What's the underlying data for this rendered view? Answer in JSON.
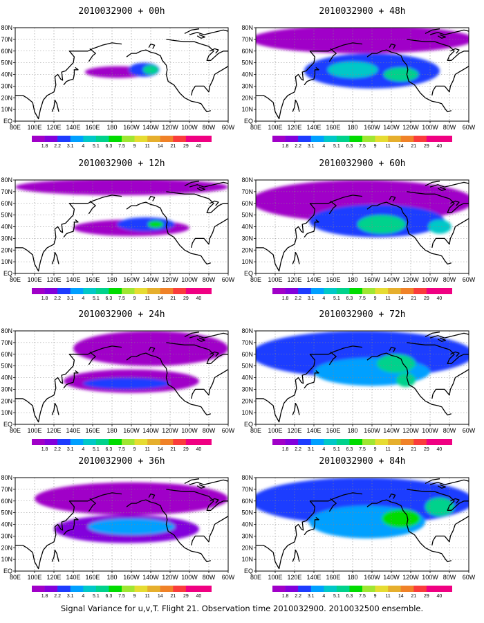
{
  "caption": "Signal Variance for u,v,T. Flight 21. Observation time 2010032900. 2010032500 ensemble.",
  "chart_data": {
    "type": "heatmap",
    "x_ticks": [
      "80E",
      "100E",
      "120E",
      "140E",
      "160E",
      "180",
      "160W",
      "140W",
      "120W",
      "100W",
      "80W",
      "60W"
    ],
    "y_ticks": [
      "EQ",
      "10N",
      "20N",
      "30N",
      "40N",
      "50N",
      "60N",
      "70N",
      "80N"
    ],
    "lon_range": [
      80,
      300
    ],
    "lat_range": [
      0,
      80
    ],
    "grid": true,
    "colorbar": {
      "levels": [
        "1.8",
        "2.2",
        "3.1",
        "4",
        "5.1",
        "6.3",
        "7.5",
        "9",
        "11",
        "14",
        "21",
        "29",
        "40"
      ],
      "colors": [
        "#a000c8",
        "#8200dc",
        "#1e3cff",
        "#00a0ff",
        "#00c8c8",
        "#00d28c",
        "#00dc00",
        "#a0e632",
        "#e6dc32",
        "#e6af2d",
        "#f08228",
        "#fa3c3c",
        "#f00082"
      ]
    },
    "panels": [
      {
        "title": "2010032900 + 00h",
        "blobs": [
          {
            "lon": 186,
            "lat": 42,
            "rx": 34,
            "ry": 5,
            "level": 0
          },
          {
            "lon": 213,
            "lat": 44,
            "rx": 16,
            "ry": 6,
            "level": 2
          },
          {
            "lon": 220,
            "lat": 44,
            "rx": 8,
            "ry": 4,
            "level": 5
          }
        ]
      },
      {
        "title": "2010032900 + 48h",
        "blobs": [
          {
            "lon": 190,
            "lat": 70,
            "rx": 115,
            "ry": 12,
            "level": 0
          },
          {
            "lon": 200,
            "lat": 43,
            "rx": 70,
            "ry": 15,
            "level": 2
          },
          {
            "lon": 180,
            "lat": 44,
            "rx": 26,
            "ry": 7,
            "level": 4
          },
          {
            "lon": 230,
            "lat": 40,
            "rx": 18,
            "ry": 6,
            "level": 5
          }
        ]
      },
      {
        "title": "2010032900 + 12h",
        "blobs": [
          {
            "lon": 190,
            "lat": 74,
            "rx": 110,
            "ry": 7,
            "level": 0
          },
          {
            "lon": 200,
            "lat": 39,
            "rx": 60,
            "ry": 7,
            "level": 0
          },
          {
            "lon": 215,
            "lat": 42,
            "rx": 30,
            "ry": 6,
            "level": 2
          },
          {
            "lon": 225,
            "lat": 42,
            "rx": 8,
            "ry": 3,
            "level": 6
          }
        ]
      },
      {
        "title": "2010032900 + 60h",
        "blobs": [
          {
            "lon": 190,
            "lat": 62,
            "rx": 115,
            "ry": 18,
            "level": 0
          },
          {
            "lon": 205,
            "lat": 45,
            "rx": 70,
            "ry": 14,
            "level": 2
          },
          {
            "lon": 210,
            "lat": 42,
            "rx": 25,
            "ry": 8,
            "level": 5
          },
          {
            "lon": 270,
            "lat": 40,
            "rx": 12,
            "ry": 6,
            "level": 4
          }
        ]
      },
      {
        "title": "2010032900 + 24h",
        "blobs": [
          {
            "lon": 220,
            "lat": 65,
            "rx": 80,
            "ry": 15,
            "level": 0
          },
          {
            "lon": 200,
            "lat": 37,
            "rx": 70,
            "ry": 10,
            "level": 0
          },
          {
            "lon": 195,
            "lat": 35,
            "rx": 45,
            "ry": 5,
            "level": 2
          }
        ]
      },
      {
        "title": "2010032900 + 72h",
        "blobs": [
          {
            "lon": 190,
            "lat": 60,
            "rx": 115,
            "ry": 20,
            "level": 2
          },
          {
            "lon": 200,
            "lat": 45,
            "rx": 60,
            "ry": 12,
            "level": 3
          },
          {
            "lon": 225,
            "lat": 52,
            "rx": 20,
            "ry": 8,
            "level": 5
          },
          {
            "lon": 235,
            "lat": 38,
            "rx": 10,
            "ry": 6,
            "level": 5
          }
        ]
      },
      {
        "title": "2010032900 + 36h",
        "blobs": [
          {
            "lon": 200,
            "lat": 62,
            "rx": 100,
            "ry": 14,
            "level": 0
          },
          {
            "lon": 195,
            "lat": 36,
            "rx": 75,
            "ry": 12,
            "level": 1
          },
          {
            "lon": 200,
            "lat": 38,
            "rx": 45,
            "ry": 7,
            "level": 3
          }
        ]
      },
      {
        "title": "2010032900 + 84h",
        "blobs": [
          {
            "lon": 190,
            "lat": 60,
            "rx": 115,
            "ry": 20,
            "level": 2
          },
          {
            "lon": 195,
            "lat": 42,
            "rx": 60,
            "ry": 14,
            "level": 3
          },
          {
            "lon": 230,
            "lat": 45,
            "rx": 20,
            "ry": 8,
            "level": 6
          },
          {
            "lon": 270,
            "lat": 55,
            "rx": 15,
            "ry": 8,
            "level": 5
          }
        ]
      }
    ]
  }
}
